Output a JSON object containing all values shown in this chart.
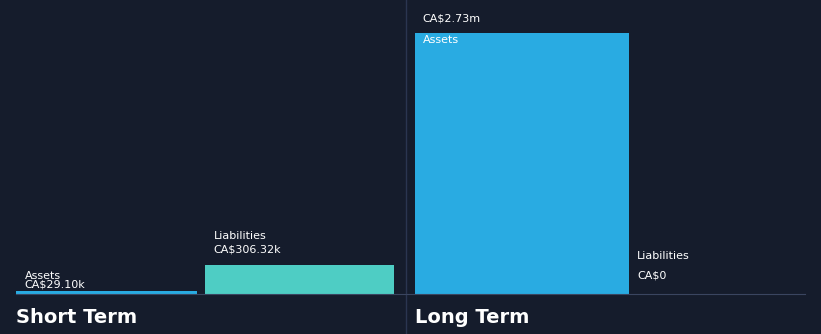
{
  "background_color": "#151c2c",
  "text_color": "#ffffff",
  "divider_color": "#2a3550",
  "short_term": {
    "assets_value": 29100,
    "liabilities_value": 306320,
    "assets_label": "Assets",
    "liabilities_label": "Liabilities",
    "assets_display": "CA$29.10k",
    "liabilities_display": "CA$306.32k",
    "assets_color": "#29abe2",
    "liabilities_color": "#4ecdc4",
    "x_label": "Short Term"
  },
  "long_term": {
    "assets_value": 2730000,
    "liabilities_value": 0,
    "assets_label": "Assets",
    "liabilities_label": "Liabilities",
    "assets_display": "CA$2.73m",
    "liabilities_display": "CA$0",
    "assets_color": "#29abe2",
    "liabilities_color": "#4ecdc4",
    "x_label": "Long Term"
  },
  "max_value": 2730000,
  "label_fontsize": 8,
  "value_fontsize": 8,
  "section_label_fontsize": 14
}
